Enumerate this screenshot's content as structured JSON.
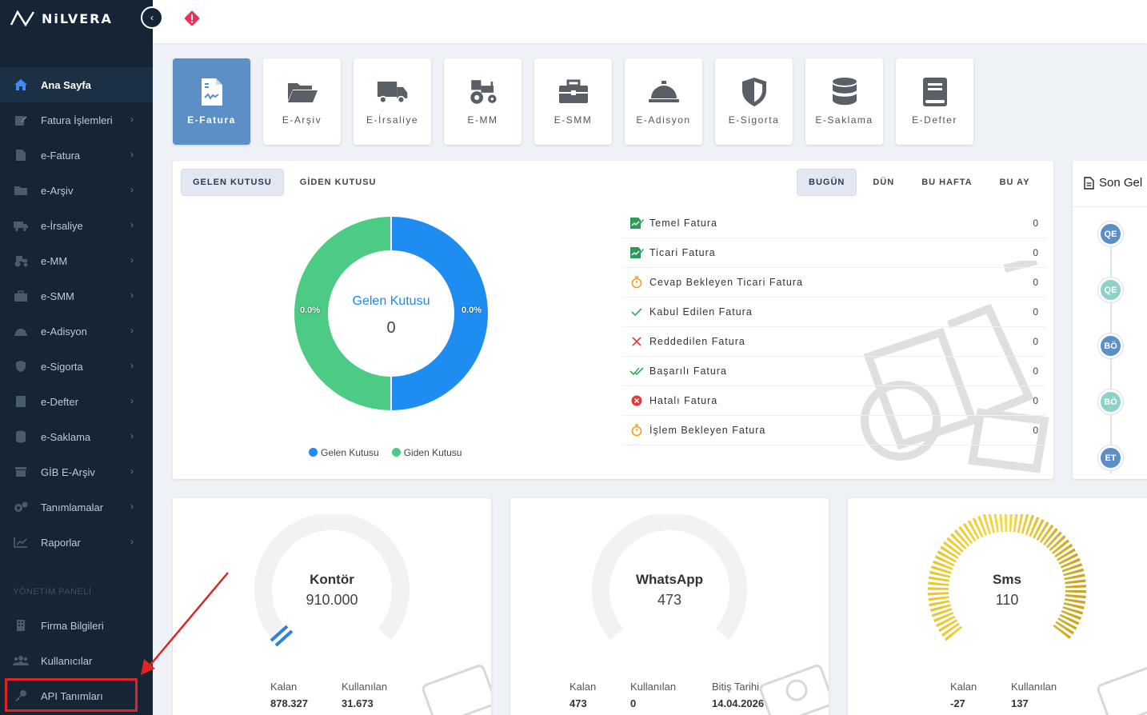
{
  "app": {
    "logo_text": "NiLVERA"
  },
  "sidebar": {
    "items": [
      {
        "label": "Ana Sayfa",
        "icon": "home-icon",
        "active": true
      },
      {
        "label": "Fatura İşlemleri",
        "icon": "edit-icon"
      },
      {
        "label": "e-Fatura",
        "icon": "file-icon"
      },
      {
        "label": "e-Arşiv",
        "icon": "folder-icon"
      },
      {
        "label": "e-İrsaliye",
        "icon": "truck-icon"
      },
      {
        "label": "e-MM",
        "icon": "tractor-icon"
      },
      {
        "label": "e-SMM",
        "icon": "briefcase-icon"
      },
      {
        "label": "e-Adisyon",
        "icon": "bell-icon"
      },
      {
        "label": "e-Sigorta",
        "icon": "shield-icon"
      },
      {
        "label": "e-Defter",
        "icon": "book-icon"
      },
      {
        "label": "e-Saklama",
        "icon": "database-icon"
      },
      {
        "label": "GİB E-Arşiv",
        "icon": "archive-icon"
      },
      {
        "label": "Tanımlamalar",
        "icon": "gears-icon"
      },
      {
        "label": "Raporlar",
        "icon": "chart-icon"
      }
    ],
    "section_title": "YÖNETİM PANELİ",
    "admin_items": [
      {
        "label": "Firma Bilgileri",
        "icon": "building-icon"
      },
      {
        "label": "Kullanıcılar",
        "icon": "users-icon"
      },
      {
        "label": "API Tanımları",
        "icon": "key-icon"
      }
    ]
  },
  "tiles": [
    {
      "label": "E-Fatura",
      "icon": "invoice-icon",
      "active": true
    },
    {
      "label": "E-Arşiv",
      "icon": "folder-open-icon"
    },
    {
      "label": "E-İrsaliye",
      "icon": "truck-icon"
    },
    {
      "label": "E-MM",
      "icon": "tractor-icon"
    },
    {
      "label": "E-SMM",
      "icon": "briefcase-icon"
    },
    {
      "label": "E-Adisyon",
      "icon": "bell-icon"
    },
    {
      "label": "E-Sigorta",
      "icon": "shield-icon"
    },
    {
      "label": "E-Saklama",
      "icon": "database-icon"
    },
    {
      "label": "E-Defter",
      "icon": "book-icon"
    }
  ],
  "main": {
    "box_tabs": [
      "GELEN KUTUSU",
      "GİDEN KUTUSU"
    ],
    "period_tabs": [
      "BUGÜN",
      "DÜN",
      "BU HAFTA",
      "BU AY"
    ],
    "donut": {
      "center_title": "Gelen Kutusu",
      "center_value": "0",
      "left_pct": "0.0%",
      "right_pct": "0.0%"
    },
    "legend": [
      {
        "label": "Gelen Kutusu",
        "color": "#1e8cf0"
      },
      {
        "label": "Giden Kutusu",
        "color": "#4ccb84"
      }
    ],
    "stats": [
      {
        "label": "Temel Fatura",
        "value": "0",
        "icon": "invoice-edit-icon",
        "color": "#2e9a5a"
      },
      {
        "label": "Ticari Fatura",
        "value": "0",
        "icon": "invoice-edit-icon",
        "color": "#2e9a5a"
      },
      {
        "label": "Cevap Bekleyen Ticari Fatura",
        "value": "0",
        "icon": "stopwatch-icon",
        "color": "#f0a020"
      },
      {
        "label": "Kabul Edilen Fatura",
        "value": "0",
        "icon": "check-icon",
        "color": "#2eaa60"
      },
      {
        "label": "Reddedilen Fatura",
        "value": "0",
        "icon": "x-icon",
        "color": "#e53935"
      },
      {
        "label": "Başarılı Fatura",
        "value": "0",
        "icon": "double-check-icon",
        "color": "#2eaa60"
      },
      {
        "label": "Hatalı Fatura",
        "value": "0",
        "icon": "x-circle-icon",
        "color": "#e53935"
      },
      {
        "label": "İşlem Bekleyen Fatura",
        "value": "0",
        "icon": "stopwatch-icon",
        "color": "#f0a020"
      }
    ]
  },
  "right_panel": {
    "title": "Son Gel",
    "badges": [
      {
        "text": "QE",
        "color": "#5d8fc7"
      },
      {
        "text": "QE",
        "color": "#8fd0c8"
      },
      {
        "text": "BÖ",
        "color": "#5d8fc7"
      },
      {
        "text": "BÖ",
        "color": "#8fd0c8"
      },
      {
        "text": "ET",
        "color": "#5d8fc7"
      }
    ]
  },
  "bottom_cards": [
    {
      "title": "Kontör",
      "value": "910.000",
      "stats": [
        {
          "label": "Kalan",
          "value": "878.327"
        },
        {
          "label": "Kullanılan",
          "value": "31.673"
        }
      ]
    },
    {
      "title": "WhatsApp",
      "value": "473",
      "stats": [
        {
          "label": "Kalan",
          "value": "473"
        },
        {
          "label": "Kullanılan",
          "value": "0"
        },
        {
          "label": "Bitiş Tarihi",
          "value": "14.04.2026"
        }
      ]
    },
    {
      "title": "Sms",
      "value": "110",
      "stats": [
        {
          "label": "Kalan",
          "value": "-27"
        },
        {
          "label": "Kullanılan",
          "value": "137"
        }
      ]
    }
  ]
}
